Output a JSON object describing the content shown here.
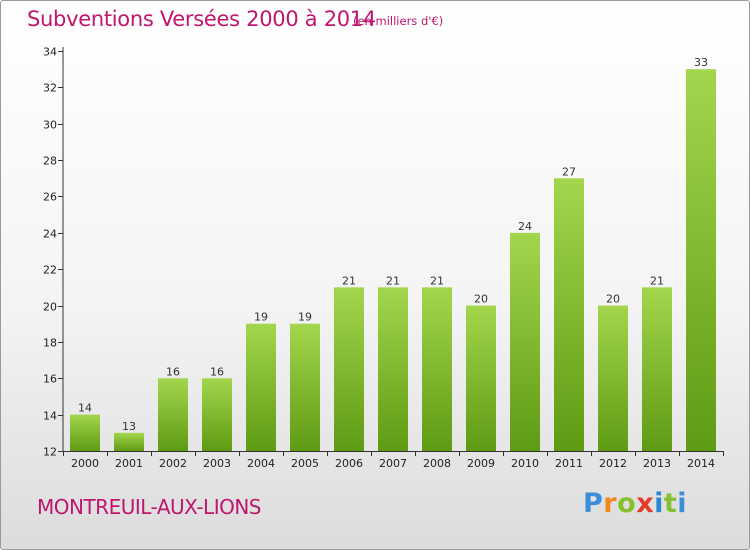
{
  "header": {
    "title": "Subventions Versées 2000 à 2014",
    "subtitle": "(en milliers d'€)"
  },
  "footer": {
    "commune": "MONTREUIL-AUX-LIONS",
    "logo": "Proxiti"
  },
  "colors": {
    "title": "#c0166e",
    "bar_light": "#9fd24a",
    "bar_dark": "#5f9d14"
  },
  "chart_data": {
    "type": "bar",
    "title": "Subventions Versées 2000 à 2014",
    "subtitle": "(en milliers d'€)",
    "xlabel": "",
    "ylabel": "",
    "categories": [
      "2000",
      "2001",
      "2002",
      "2003",
      "2004",
      "2005",
      "2006",
      "2007",
      "2008",
      "2009",
      "2010",
      "2011",
      "2012",
      "2013",
      "2014"
    ],
    "values": [
      14,
      13,
      16,
      16,
      19,
      19,
      21,
      21,
      21,
      20,
      24,
      27,
      20,
      21,
      33
    ],
    "data_labels": [
      "14",
      "13",
      "16",
      "16",
      "19",
      "19",
      "21",
      "21",
      "21",
      "20",
      "24",
      "27",
      "20",
      "21",
      "33"
    ],
    "ylim": [
      12,
      34
    ],
    "yticks": [
      12,
      14,
      16,
      18,
      20,
      22,
      24,
      26,
      28,
      30,
      32,
      34
    ],
    "ytick_labels": [
      "12",
      "14",
      "16",
      "18",
      "20",
      "22",
      "24",
      "26",
      "28",
      "30",
      "32",
      "34"
    ],
    "grid": false,
    "legend": "none"
  }
}
